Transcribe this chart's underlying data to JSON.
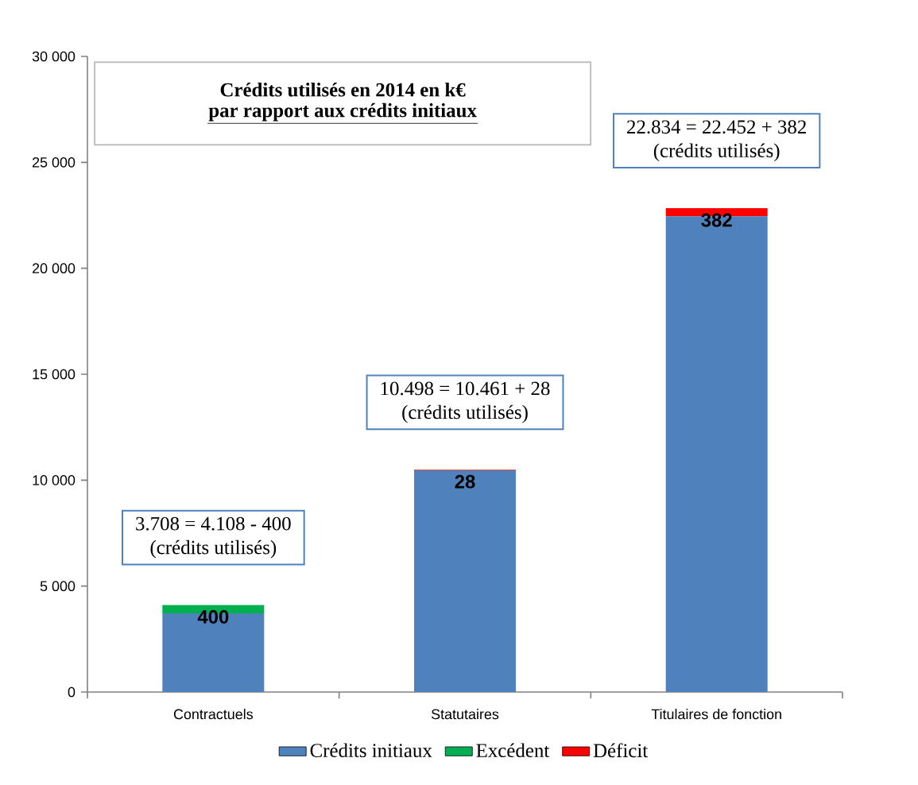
{
  "chart_data": {
    "type": "bar",
    "title": "**Crédits utilisés en 2014 en k€ par rapport aux crédits initiaux**",
    "stacked": true,
    "legend": "bottom",
    "categories": [
      "Contractuels",
      "Statutaires",
      "Titulaires de fonction"
    ],
    "series": [
      {
        "name": "Crédits initiaux",
        "color": "#4f81bd",
        "values": [
          3708,
          10461,
          22452
        ]
      },
      {
        "name": "Excédent",
        "color": "#00b050",
        "values": [
          400,
          null,
          null
        ],
        "value_labels": [
          "400",
          null,
          null
        ]
      },
      {
        "name": "Déficit",
        "color": "#ff0000",
        "values": [
          null,
          28,
          382
        ],
        "value_labels": [
          null,
          "28",
          "382"
        ]
      }
    ],
    "ylim": [
      0,
      30000
    ],
    "yticks": [
      {
        "value": 0,
        "label": "0"
      },
      {
        "value": 5000,
        "label": "5 000"
      },
      {
        "value": 10000,
        "label": "10 000"
      },
      {
        "value": 15000,
        "label": "15 000"
      },
      {
        "value": 20000,
        "label": "20 000"
      },
      {
        "value": 25000,
        "label": "25 000"
      },
      {
        "value": 30000,
        "label": "30 000"
      }
    ],
    "annotations": [
      "3.708 = 4.108 - 400",
      "(crédits utilisés)",
      "10.498 = 10.461 + 28",
      "(crédits utilisés)",
      "22.834 = 22.452 + 382",
      "(crédits utilisés)"
    ]
  }
}
